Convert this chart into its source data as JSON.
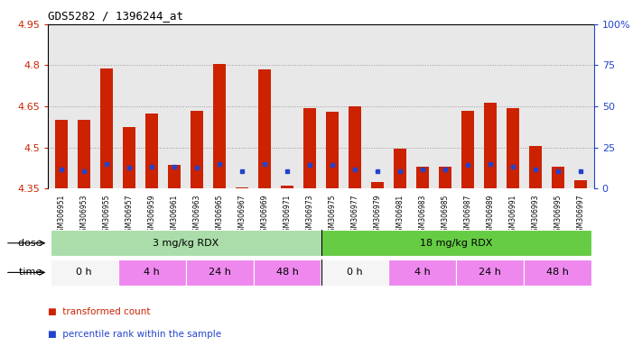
{
  "title": "GDS5282 / 1396244_at",
  "samples": [
    "GSM306951",
    "GSM306953",
    "GSM306955",
    "GSM306957",
    "GSM306959",
    "GSM306961",
    "GSM306963",
    "GSM306965",
    "GSM306967",
    "GSM306969",
    "GSM306971",
    "GSM306973",
    "GSM306975",
    "GSM306977",
    "GSM306979",
    "GSM306981",
    "GSM306983",
    "GSM306985",
    "GSM306987",
    "GSM306989",
    "GSM306991",
    "GSM306993",
    "GSM306995",
    "GSM306997"
  ],
  "bar_values": [
    4.6,
    4.6,
    4.79,
    4.575,
    4.625,
    4.435,
    4.635,
    4.805,
    4.355,
    4.785,
    4.36,
    4.645,
    4.63,
    4.65,
    4.375,
    4.495,
    4.43,
    4.43,
    4.635,
    4.665,
    4.645,
    4.505,
    4.43,
    4.38
  ],
  "blue_dot_values": [
    4.42,
    4.415,
    4.44,
    4.425,
    4.43,
    4.43,
    4.425,
    4.44,
    4.415,
    4.44,
    4.415,
    4.435,
    4.435,
    4.42,
    4.415,
    4.415,
    4.42,
    4.42,
    4.435,
    4.44,
    4.43,
    4.42,
    4.415,
    4.415
  ],
  "ymin": 4.35,
  "ymax": 4.95,
  "yticks": [
    4.35,
    4.5,
    4.65,
    4.8,
    4.95
  ],
  "ytick_labels": [
    "4.35",
    "4.5",
    "4.65",
    "4.8",
    "4.95"
  ],
  "right_yticks": [
    0,
    25,
    50,
    75,
    100
  ],
  "right_ytick_labels": [
    "0",
    "25",
    "50",
    "75",
    "100%"
  ],
  "bar_color": "#cc2200",
  "dot_color": "#2244cc",
  "grid_color": "#999999",
  "bg_color": "#e8e8e8",
  "dose_groups": [
    {
      "label": "3 mg/kg RDX",
      "start": 0,
      "end": 12,
      "color": "#aaddaa"
    },
    {
      "label": "18 mg/kg RDX",
      "start": 12,
      "end": 24,
      "color": "#66cc44"
    }
  ],
  "time_groups": [
    {
      "label": "0 h",
      "start": 0,
      "end": 3,
      "color": "#f5f5f5"
    },
    {
      "label": "4 h",
      "start": 3,
      "end": 6,
      "color": "#ee88ee"
    },
    {
      "label": "24 h",
      "start": 6,
      "end": 9,
      "color": "#ee88ee"
    },
    {
      "label": "48 h",
      "start": 9,
      "end": 12,
      "color": "#ee88ee"
    },
    {
      "label": "0 h",
      "start": 12,
      "end": 15,
      "color": "#f5f5f5"
    },
    {
      "label": "4 h",
      "start": 15,
      "end": 18,
      "color": "#ee88ee"
    },
    {
      "label": "24 h",
      "start": 18,
      "end": 21,
      "color": "#ee88ee"
    },
    {
      "label": "48 h",
      "start": 21,
      "end": 24,
      "color": "#ee88ee"
    }
  ],
  "legend_items": [
    {
      "label": "transformed count",
      "color": "#cc2200"
    },
    {
      "label": "percentile rank within the sample",
      "color": "#2244cc"
    }
  ]
}
